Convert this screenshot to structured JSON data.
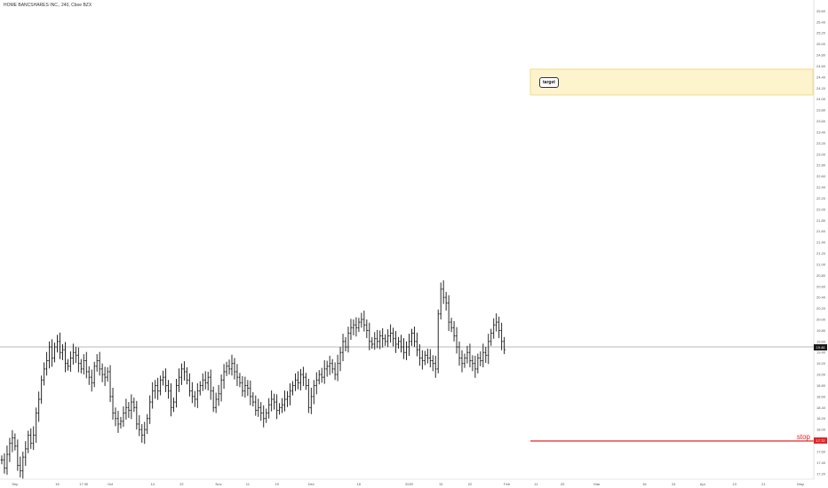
{
  "header": {
    "title": "HOME BANCSHARES INC., 240, Cboe BZX"
  },
  "annotations": {
    "target_label": "target",
    "stop_label": "stop",
    "last_price_label": "19.46",
    "stop_price_label": "17.72"
  },
  "colors": {
    "bar": "#111111",
    "target_fill": "#fdf3cc",
    "target_border": "#f3d98a",
    "stop_line": "#e0262a",
    "axis": "#555555",
    "price_line": "#777777"
  },
  "chart_data": {
    "type": "ohlc",
    "title": "HOME BANCSHARES INC., 240, Cboe BZX",
    "ylim": [
      17.1,
      25.8
    ],
    "yticks": [
      "17.20",
      "17.40",
      "17.60",
      "17.80",
      "18.00",
      "18.20",
      "18.40",
      "18.60",
      "18.80",
      "19.00",
      "19.20",
      "19.40",
      "19.60",
      "19.80",
      "20.00",
      "20.20",
      "20.40",
      "20.60",
      "20.80",
      "21.00",
      "21.20",
      "21.40",
      "21.60",
      "21.80",
      "22.00",
      "22.20",
      "22.40",
      "22.60",
      "22.80",
      "23.00",
      "23.20",
      "23.40",
      "23.60",
      "23.80",
      "24.00",
      "24.20",
      "24.40",
      "24.60",
      "24.80",
      "25.00",
      "25.20",
      "25.40",
      "25.60"
    ],
    "xticks": [
      {
        "label": "Sep",
        "i": 5
      },
      {
        "label": "16",
        "i": 21
      },
      {
        "label": "17:30",
        "i": 31
      },
      {
        "label": "Oct",
        "i": 41
      },
      {
        "label": "14",
        "i": 57
      },
      {
        "label": "22",
        "i": 68
      },
      {
        "label": "Nov",
        "i": 82
      },
      {
        "label": "11",
        "i": 93
      },
      {
        "label": "19",
        "i": 104
      },
      {
        "label": "Dec",
        "i": 117
      },
      {
        "label": "16",
        "i": 135
      },
      {
        "label": "2020",
        "i": 154
      },
      {
        "label": "13",
        "i": 166
      },
      {
        "label": "22",
        "i": 177
      },
      {
        "label": "Feb",
        "i": 191
      },
      {
        "label": "11",
        "i": 202
      },
      {
        "label": "20",
        "i": 212
      },
      {
        "label": "Mar",
        "i": 225
      },
      {
        "label": "16",
        "i": 243
      },
      {
        "label": "24",
        "i": 254
      },
      {
        "label": "Apr",
        "i": 265
      },
      {
        "label": "13",
        "i": 277
      },
      {
        "label": "21",
        "i": 288
      },
      {
        "label": "May",
        "i": 302
      }
    ],
    "bar_spacing_index_count": 305,
    "closes": [
      17.45,
      17.3,
      17.55,
      17.75,
      17.85,
      17.7,
      17.35,
      17.25,
      17.5,
      17.65,
      17.9,
      17.75,
      17.9,
      18.3,
      18.55,
      18.9,
      19.1,
      19.25,
      19.5,
      19.3,
      19.5,
      19.6,
      19.4,
      19.45,
      19.2,
      19.15,
      19.3,
      19.4,
      19.35,
      19.2,
      19.1,
      19.25,
      19.05,
      18.95,
      18.85,
      19.15,
      19.25,
      19.1,
      19.0,
      18.95,
      19.05,
      18.6,
      18.3,
      18.2,
      18.1,
      18.15,
      18.3,
      18.4,
      18.35,
      18.5,
      18.4,
      18.1,
      18.0,
      17.9,
      18.0,
      18.2,
      18.5,
      18.7,
      18.8,
      18.7,
      18.9,
      18.95,
      18.8,
      18.7,
      18.4,
      18.5,
      18.8,
      18.95,
      19.1,
      19.05,
      18.9,
      18.7,
      18.6,
      18.55,
      18.7,
      18.8,
      18.9,
      18.85,
      18.95,
      18.7,
      18.4,
      18.55,
      18.65,
      18.9,
      19.05,
      19.15,
      19.1,
      19.2,
      19.05,
      18.95,
      18.85,
      18.7,
      18.8,
      18.75,
      18.6,
      18.5,
      18.35,
      18.4,
      18.3,
      18.2,
      18.3,
      18.45,
      18.55,
      18.5,
      18.35,
      18.4,
      18.45,
      18.55,
      18.6,
      18.7,
      18.8,
      18.9,
      18.85,
      19.0,
      18.95,
      18.8,
      18.4,
      18.6,
      18.8,
      18.9,
      19.0,
      18.95,
      19.1,
      19.15,
      19.2,
      19.1,
      19.0,
      19.2,
      19.4,
      19.6,
      19.5,
      19.75,
      19.85,
      19.9,
      19.85,
      19.95,
      20.0,
      19.9,
      19.8,
      19.6,
      19.55,
      19.65,
      19.6,
      19.7,
      19.65,
      19.6,
      19.7,
      19.75,
      19.65,
      19.55,
      19.6,
      19.5,
      19.4,
      19.5,
      19.6,
      19.75,
      19.6,
      19.45,
      19.3,
      19.25,
      19.35,
      19.3,
      19.25,
      19.2,
      19.1,
      20.1,
      20.55,
      20.4,
      20.3,
      19.95,
      19.85,
      19.7,
      19.5,
      19.3,
      19.2,
      19.3,
      19.4,
      19.25,
      19.2,
      19.1,
      19.3,
      19.25,
      19.4,
      19.35,
      19.6,
      19.75,
      19.9,
      19.95,
      19.8,
      19.6,
      19.45
    ]
  }
}
